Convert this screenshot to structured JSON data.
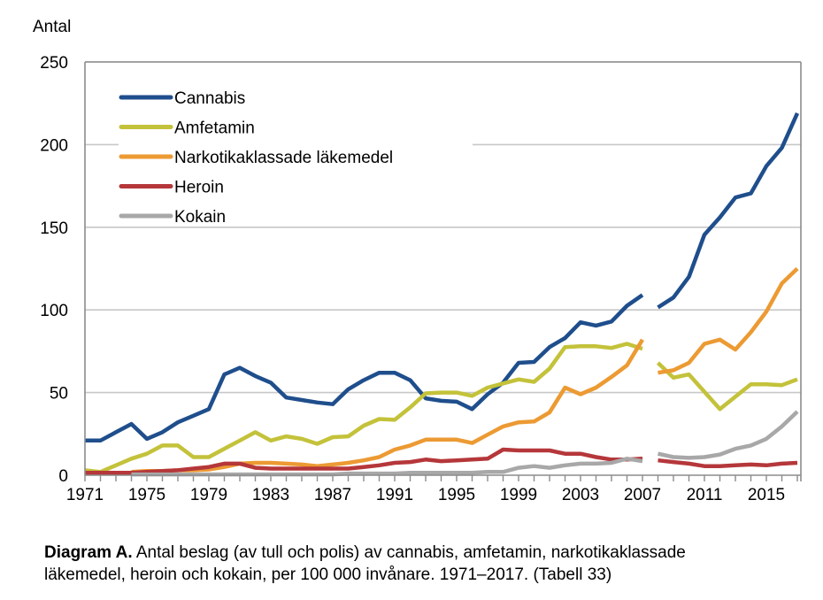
{
  "chart_data": {
    "type": "line",
    "ylabel": "Antal",
    "xlabel": "",
    "ylim": [
      0,
      250
    ],
    "yticks": [
      0,
      50,
      100,
      150,
      200,
      250
    ],
    "ytick_labels": [
      "0",
      "50",
      "100",
      "150",
      "200",
      "250"
    ],
    "xlim": [
      1971,
      2017
    ],
    "xtick_labels": [
      "1971",
      "1975",
      "1979",
      "1983",
      "1987",
      "1991",
      "1995",
      "1999",
      "2003",
      "2007",
      "2011",
      "2015"
    ],
    "xticks": [
      1971,
      1975,
      1979,
      1983,
      1987,
      1991,
      1995,
      1999,
      2003,
      2007,
      2011,
      2015
    ],
    "grid": "horizontal",
    "legend_position": "top-left",
    "series_break_after": 2007,
    "x": [
      1971,
      1972,
      1973,
      1974,
      1975,
      1976,
      1977,
      1978,
      1979,
      1980,
      1981,
      1982,
      1983,
      1984,
      1985,
      1986,
      1987,
      1988,
      1989,
      1990,
      1991,
      1992,
      1993,
      1994,
      1995,
      1996,
      1997,
      1998,
      1999,
      2000,
      2001,
      2002,
      2003,
      2004,
      2005,
      2006,
      2007,
      2008,
      2009,
      2010,
      2011,
      2012,
      2013,
      2014,
      2015,
      2016,
      2017
    ],
    "series": [
      {
        "name": "Cannabis",
        "color": "#1f4e8c",
        "values": [
          21,
          21,
          26,
          31,
          22,
          26,
          32,
          36,
          40,
          61,
          65,
          60,
          56,
          47,
          45.5,
          44,
          43,
          52,
          57.5,
          62,
          62,
          57.5,
          46.5,
          45,
          44.5,
          40,
          49,
          56,
          68,
          68.5,
          77.5,
          83,
          92.5,
          90.5,
          93,
          102.5,
          109,
          101.5,
          107.5,
          120,
          145.5,
          156,
          168,
          170.5,
          187,
          198,
          219
        ]
      },
      {
        "name": "Amfetamin",
        "color": "#c3c23a",
        "values": [
          3,
          2,
          6,
          10,
          13,
          18,
          18,
          11,
          11,
          16,
          21,
          26,
          21,
          23.5,
          22,
          19,
          23,
          23.5,
          30,
          34,
          33.5,
          41,
          49.5,
          50,
          50,
          48,
          53,
          55.5,
          58,
          56.5,
          64.5,
          77.5,
          78,
          78,
          77,
          79.5,
          76.5,
          68,
          59,
          61,
          50.5,
          40,
          47.5,
          55,
          55,
          54.5,
          58
        ]
      },
      {
        "name": "Narkotikaklassade läkemedel",
        "color": "#ec9a33",
        "values": [
          null,
          null,
          null,
          2,
          2.5,
          2.5,
          3,
          3,
          3.5,
          5,
          7,
          7.5,
          7.5,
          7,
          6.5,
          5.5,
          6.5,
          7.5,
          9,
          11,
          15.5,
          18,
          21.5,
          21.5,
          21.5,
          19.5,
          24.5,
          29.5,
          32,
          32.5,
          38,
          53,
          49,
          53,
          59.5,
          66.5,
          82,
          62,
          63.5,
          68,
          79.5,
          82,
          76,
          86.5,
          99,
          116,
          125
        ]
      },
      {
        "name": "Heroin",
        "color": "#b5373a",
        "values": [
          1.5,
          1.5,
          1.5,
          1.5,
          2,
          2.5,
          3,
          4,
          5,
          7,
          7,
          4.5,
          4,
          4,
          4,
          4,
          4,
          4,
          5,
          6,
          7.5,
          8,
          9.5,
          8.5,
          9,
          9.5,
          10,
          15.5,
          15,
          15,
          15,
          13,
          13,
          11,
          9.5,
          9.5,
          10,
          9,
          8,
          7,
          5.5,
          5.5,
          6,
          6.5,
          6,
          7,
          7.5
        ]
      },
      {
        "name": "Kokain",
        "color": "#a8a8a8",
        "values": [
          null,
          null,
          null,
          0.5,
          0.5,
          0.5,
          0.5,
          0.5,
          0.5,
          0.5,
          0.5,
          0.5,
          0.5,
          0.5,
          0.5,
          0.5,
          0.5,
          1,
          1,
          1,
          1,
          1.5,
          1.5,
          1.5,
          1.5,
          1.5,
          2,
          2,
          4.5,
          5.5,
          4.5,
          6,
          7,
          7,
          7.5,
          10,
          8.5,
          13,
          11,
          10.5,
          11,
          12.5,
          16,
          18,
          22,
          29.5,
          38.5
        ]
      }
    ]
  },
  "caption": {
    "label": "Diagram A.",
    "text_line1": " Antal beslag (av tull och polis) av cannabis, amfetamin, narkotikaklassade",
    "text_line2": "läkemedel, heroin och kokain, per 100 000 invånare. 1971–2017. (Tabell 33)"
  }
}
